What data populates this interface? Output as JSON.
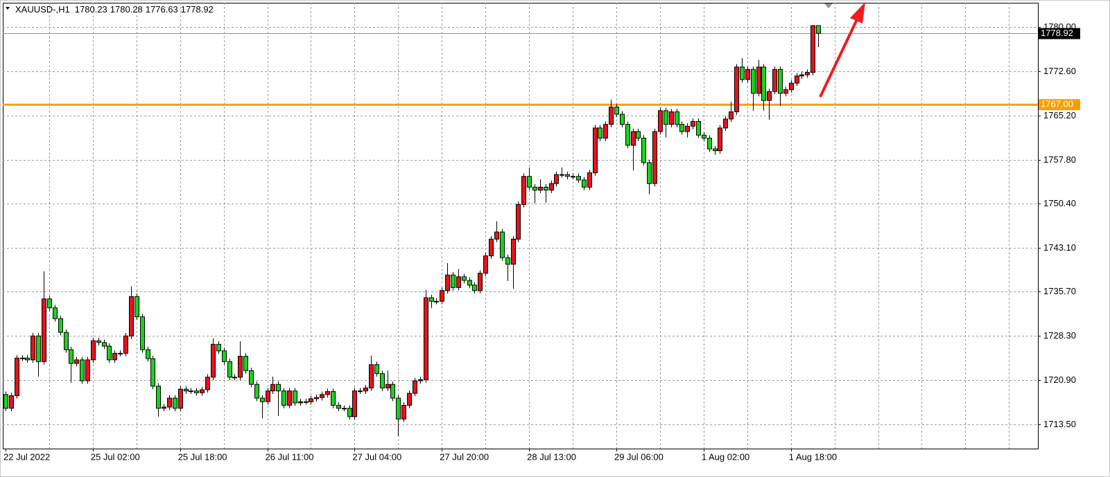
{
  "chart_data": {
    "type": "candlestick",
    "symbol": "XAUUSD-,H1",
    "categories": [
      "22 Jul 2022",
      null,
      null,
      null,
      null,
      null,
      null,
      null,
      null,
      null,
      null,
      null,
      null,
      null,
      null,
      null,
      "25 Jul 02:00",
      null,
      null,
      null,
      null,
      null,
      null,
      null,
      null,
      null,
      null,
      null,
      null,
      null,
      null,
      null,
      "25 Jul 18:00",
      null,
      null,
      null,
      null,
      null,
      null,
      null,
      null,
      null,
      null,
      null,
      null,
      null,
      null,
      null,
      "26 Jul 11:00",
      null,
      null,
      null,
      null,
      null,
      null,
      null,
      null,
      null,
      null,
      null,
      null,
      null,
      null,
      null,
      "27 Jul 04:00",
      null,
      null,
      null,
      null,
      null,
      null,
      null,
      null,
      null,
      null,
      null,
      null,
      null,
      null,
      null,
      "27 Jul 20:00",
      null,
      null,
      null,
      null,
      null,
      null,
      null,
      null,
      null,
      null,
      null,
      null,
      null,
      null,
      null,
      "28 Jul 13:00",
      null,
      null,
      null,
      null,
      null,
      null,
      null,
      null,
      null,
      null,
      null,
      null,
      null,
      null,
      null,
      "29 Jul 06:00",
      null,
      null,
      null,
      null,
      null,
      null,
      null,
      null,
      null,
      null,
      null,
      null,
      null,
      null,
      null,
      "1 Aug 02:00",
      null,
      null,
      null,
      null,
      null,
      null,
      null,
      null,
      null,
      null,
      null,
      null,
      null,
      null,
      null,
      "1 Aug 18:00",
      null,
      null,
      null,
      null,
      null
    ],
    "open": [
      1718.5,
      1716.2,
      1718.3,
      1724.6,
      1724.6,
      1724.3,
      1728.3,
      1724.0,
      1734.5,
      1733.0,
      1731.2,
      1728.9,
      1726.0,
      1723.7,
      1724.3,
      1720.8,
      1724.3,
      1727.5,
      1727.2,
      1726.6,
      1724.3,
      1725.4,
      1725.4,
      1728.3,
      1734.9,
      1731.5,
      1726.0,
      1724.5,
      1719.9,
      1716.2,
      1716.4,
      1717.9,
      1716.2,
      1719.4,
      1719.1,
      1719.1,
      1718.8,
      1719.3,
      1721.4,
      1726.9,
      1725.8,
      1724.0,
      1721.4,
      1721.4,
      1724.9,
      1722.5,
      1720.2,
      1717.9,
      1717.3,
      1719.1,
      1720.2,
      1719.1,
      1716.7,
      1719.1,
      1717.1,
      1717.3,
      1717.3,
      1717.8,
      1718.0,
      1718.5,
      1719.0,
      1716.7,
      1716.2,
      1716.2,
      1714.8,
      1719.1,
      1719.1,
      1719.6,
      1723.5,
      1722.0,
      1719.6,
      1720.2,
      1717.9,
      1714.4,
      1716.7,
      1718.7,
      1720.8,
      1721.0,
      1734.7,
      1734.1,
      1734.1,
      1735.9,
      1738.5,
      1736.4,
      1738.2,
      1737.6,
      1736.8,
      1735.9,
      1738.8,
      1741.7,
      1744.5,
      1745.7,
      1741.4,
      1740.3,
      1744.5,
      1750.3,
      1755.0,
      1753.2,
      1752.7,
      1753.2,
      1752.7,
      1753.8,
      1755.3,
      1755.3,
      1755.0,
      1755.0,
      1754.4,
      1753.2,
      1755.6,
      1763.1,
      1761.4,
      1763.7,
      1766.6,
      1765.4,
      1763.7,
      1760.2,
      1762.5,
      1761.4,
      1757.3,
      1753.8,
      1762.5,
      1766.0,
      1763.7,
      1765.8,
      1763.7,
      1762.5,
      1763.4,
      1764.2,
      1761.9,
      1761.4,
      1759.6,
      1759.3,
      1763.1,
      1764.6,
      1765.8,
      1773.3,
      1771.2,
      1772.9,
      1768.9,
      1773.3,
      1767.7,
      1769.2,
      1772.9,
      1768.9,
      1769.5,
      1770.6,
      1771.8,
      1772.0,
      1772.4,
      1780.23
    ],
    "high": [
      1719.0,
      1718.8,
      1725.1,
      1725.1,
      1725.1,
      1728.8,
      1728.8,
      1739.1,
      1735.0,
      1733.5,
      1731.7,
      1729.4,
      1726.5,
      1724.8,
      1724.8,
      1724.8,
      1728.0,
      1728.0,
      1727.7,
      1727.1,
      1725.9,
      1725.9,
      1728.8,
      1736.6,
      1735.4,
      1732.0,
      1726.5,
      1725.0,
      1720.4,
      1716.9,
      1718.4,
      1718.4,
      1719.9,
      1719.9,
      1719.6,
      1719.6,
      1719.8,
      1721.9,
      1727.9,
      1727.4,
      1726.3,
      1724.5,
      1721.9,
      1727.4,
      1725.4,
      1723.0,
      1720.7,
      1718.4,
      1719.6,
      1721.5,
      1720.7,
      1719.6,
      1719.6,
      1719.6,
      1717.8,
      1717.8,
      1718.3,
      1718.5,
      1719.0,
      1719.5,
      1719.5,
      1717.2,
      1716.7,
      1716.7,
      1719.6,
      1719.6,
      1720.1,
      1725.0,
      1724.0,
      1722.5,
      1722.5,
      1720.7,
      1718.4,
      1717.2,
      1719.2,
      1721.3,
      1721.5,
      1736.0,
      1735.2,
      1734.6,
      1736.4,
      1740.5,
      1739.0,
      1739.5,
      1738.7,
      1738.1,
      1737.3,
      1739.3,
      1742.2,
      1745.0,
      1747.5,
      1746.2,
      1741.9,
      1745.0,
      1750.8,
      1755.5,
      1756.5,
      1753.7,
      1754.5,
      1753.7,
      1754.3,
      1755.8,
      1756.5,
      1755.8,
      1755.5,
      1755.5,
      1754.9,
      1756.1,
      1763.6,
      1763.6,
      1764.2,
      1767.8,
      1767.1,
      1765.9,
      1764.2,
      1763.0,
      1763.0,
      1761.9,
      1757.8,
      1763.0,
      1766.5,
      1766.5,
      1766.3,
      1766.3,
      1764.2,
      1763.9,
      1764.7,
      1764.7,
      1762.4,
      1761.9,
      1760.1,
      1763.6,
      1765.1,
      1767.5,
      1773.8,
      1774.8,
      1773.4,
      1773.4,
      1774.5,
      1773.8,
      1769.7,
      1773.4,
      1773.4,
      1770.0,
      1771.1,
      1772.3,
      1772.5,
      1772.9,
      1780.3,
      1780.28
    ],
    "low": [
      1715.7,
      1715.7,
      1717.8,
      1724.1,
      1723.8,
      1723.8,
      1721.5,
      1723.5,
      1732.5,
      1730.7,
      1728.4,
      1725.5,
      1720.5,
      1723.2,
      1720.3,
      1720.3,
      1723.8,
      1726.7,
      1726.1,
      1723.8,
      1723.8,
      1724.9,
      1724.9,
      1727.8,
      1731.0,
      1725.5,
      1724.0,
      1719.4,
      1714.8,
      1715.7,
      1715.9,
      1715.7,
      1715.7,
      1718.6,
      1718.6,
      1718.3,
      1718.3,
      1718.8,
      1720.9,
      1725.3,
      1723.5,
      1720.9,
      1720.9,
      1720.9,
      1722.0,
      1719.7,
      1717.4,
      1714.5,
      1716.8,
      1718.6,
      1714.9,
      1716.2,
      1716.2,
      1716.6,
      1716.6,
      1716.8,
      1716.8,
      1717.3,
      1717.5,
      1718.0,
      1716.2,
      1715.7,
      1715.7,
      1714.3,
      1714.3,
      1718.6,
      1718.6,
      1719.1,
      1721.5,
      1719.1,
      1719.1,
      1717.4,
      1711.5,
      1713.9,
      1716.2,
      1718.2,
      1720.3,
      1720.5,
      1733.0,
      1733.6,
      1733.6,
      1735.4,
      1735.9,
      1735.9,
      1737.1,
      1736.3,
      1735.4,
      1735.4,
      1738.3,
      1741.2,
      1744.0,
      1740.9,
      1737.5,
      1736.2,
      1744.0,
      1749.8,
      1752.7,
      1750.5,
      1752.2,
      1750.6,
      1752.2,
      1753.3,
      1754.8,
      1754.5,
      1754.5,
      1753.9,
      1752.7,
      1752.7,
      1755.1,
      1760.9,
      1760.9,
      1763.2,
      1764.9,
      1763.2,
      1759.7,
      1756.0,
      1760.9,
      1756.8,
      1752.0,
      1753.3,
      1762.0,
      1761.5,
      1763.2,
      1763.2,
      1762.0,
      1761.5,
      1762.9,
      1761.4,
      1760.9,
      1759.1,
      1758.6,
      1758.8,
      1762.6,
      1764.1,
      1765.3,
      1770.7,
      1770.7,
      1766.0,
      1768.4,
      1766.0,
      1764.5,
      1768.7,
      1766.8,
      1768.4,
      1769.0,
      1770.1,
      1771.3,
      1771.5,
      1771.9,
      1776.63
    ],
    "close": [
      1716.2,
      1718.3,
      1724.6,
      1724.6,
      1724.3,
      1728.3,
      1724.0,
      1734.5,
      1733.0,
      1731.2,
      1728.9,
      1726.0,
      1723.7,
      1724.3,
      1720.8,
      1724.3,
      1727.5,
      1727.2,
      1726.6,
      1724.3,
      1725.4,
      1725.4,
      1728.3,
      1734.9,
      1731.5,
      1726.0,
      1724.5,
      1719.9,
      1716.2,
      1716.4,
      1717.9,
      1716.2,
      1719.4,
      1719.1,
      1719.1,
      1718.8,
      1719.3,
      1721.4,
      1726.9,
      1725.8,
      1724.0,
      1721.4,
      1721.4,
      1724.9,
      1722.5,
      1720.2,
      1717.9,
      1717.3,
      1719.1,
      1720.2,
      1719.1,
      1716.7,
      1719.1,
      1717.1,
      1717.3,
      1717.3,
      1717.8,
      1718.0,
      1718.5,
      1719.0,
      1716.7,
      1716.2,
      1716.2,
      1714.8,
      1719.1,
      1719.1,
      1719.6,
      1723.5,
      1722.0,
      1719.6,
      1720.2,
      1717.9,
      1714.4,
      1716.7,
      1718.7,
      1720.8,
      1721.0,
      1734.7,
      1734.1,
      1734.1,
      1735.9,
      1738.5,
      1736.4,
      1738.2,
      1737.6,
      1736.8,
      1735.9,
      1738.8,
      1741.7,
      1744.5,
      1745.7,
      1741.4,
      1740.3,
      1744.5,
      1750.3,
      1755.0,
      1753.2,
      1752.7,
      1753.2,
      1752.7,
      1753.8,
      1755.3,
      1755.3,
      1755.0,
      1755.0,
      1754.4,
      1753.2,
      1755.6,
      1763.1,
      1761.4,
      1763.7,
      1766.6,
      1765.4,
      1763.7,
      1760.2,
      1762.5,
      1761.4,
      1757.3,
      1753.8,
      1762.5,
      1766.0,
      1763.7,
      1765.8,
      1763.7,
      1762.5,
      1763.4,
      1764.2,
      1761.9,
      1761.4,
      1759.6,
      1759.3,
      1763.1,
      1764.6,
      1765.8,
      1773.3,
      1771.2,
      1772.9,
      1768.9,
      1773.3,
      1767.7,
      1769.2,
      1772.9,
      1768.9,
      1769.5,
      1770.6,
      1771.8,
      1772.0,
      1772.4,
      1780.23,
      1778.92
    ],
    "up_color": "#e3141b",
    "down_color": "#1ed01e",
    "ylim": [
      1709.45,
      1784.05
    ],
    "yticks": [
      {
        "value": 1713.5,
        "label": "1713.50"
      },
      {
        "value": 1720.9,
        "label": "1720.90"
      },
      {
        "value": 1728.3,
        "label": "1728.30"
      },
      {
        "value": 1735.7,
        "label": "1735.70"
      },
      {
        "value": 1743.1,
        "label": "1743.10"
      },
      {
        "value": 1750.4,
        "label": "1750.40"
      },
      {
        "value": 1757.8,
        "label": "1757.80"
      },
      {
        "value": 1765.2,
        "label": "1765.20"
      },
      {
        "value": 1772.6,
        "label": "1772.60"
      },
      {
        "value": 1780,
        "label": "1780.00"
      }
    ],
    "grid": true,
    "lines": [
      {
        "value": 1767,
        "label": "1767.00",
        "color": "#f5a000"
      }
    ]
  }
}
